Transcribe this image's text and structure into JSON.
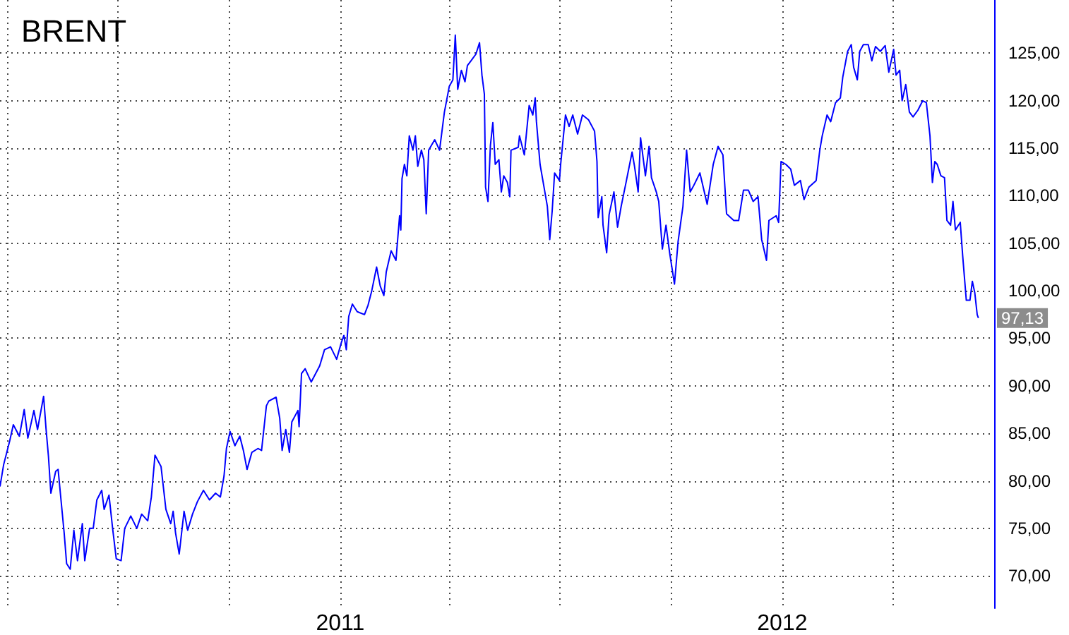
{
  "chart_data": {
    "type": "line",
    "title": "BRENT",
    "x": [
      "2010-03-26",
      "2010-03-29",
      "2010-04-03",
      "2010-04-06",
      "2010-04-11",
      "2010-04-15",
      "2010-04-18",
      "2010-04-23",
      "2010-04-26",
      "2010-05-01",
      "2010-05-03",
      "2010-05-05",
      "2010-05-07",
      "2010-05-11",
      "2010-05-13",
      "2010-05-15",
      "2010-05-18",
      "2010-05-20",
      "2010-05-23",
      "2010-05-26",
      "2010-05-29",
      "2010-06-02",
      "2010-06-04",
      "2010-06-08",
      "2010-06-11",
      "2010-06-14",
      "2010-06-18",
      "2010-06-20",
      "2010-06-24",
      "2010-06-27",
      "2010-06-30",
      "2010-07-04",
      "2010-07-07",
      "2010-07-12",
      "2010-07-17",
      "2010-07-21",
      "2010-07-26",
      "2010-07-29",
      "2010-08-01",
      "2010-08-06",
      "2010-08-10",
      "2010-08-14",
      "2010-08-16",
      "2010-08-18",
      "2010-08-21",
      "2010-08-25",
      "2010-08-28",
      "2010-09-01",
      "2010-09-05",
      "2010-09-10",
      "2010-09-15",
      "2010-09-20",
      "2010-09-24",
      "2010-09-27",
      "2010-09-29",
      "2010-10-02",
      "2010-10-06",
      "2010-10-10",
      "2010-10-13",
      "2010-10-16",
      "2010-10-20",
      "2010-10-25",
      "2010-10-28",
      "2010-11-01",
      "2010-11-03",
      "2010-11-09",
      "2010-11-12",
      "2010-11-14",
      "2010-11-17",
      "2010-11-20",
      "2010-11-22",
      "2010-11-27",
      "2010-11-28",
      "2010-11-30",
      "2010-12-03",
      "2010-12-08",
      "2010-12-15",
      "2010-12-19",
      "2010-12-24",
      "2010-12-29",
      "2011-01-02",
      "2011-01-04",
      "2011-01-06",
      "2011-01-08",
      "2011-01-11",
      "2011-01-15",
      "2011-01-21",
      "2011-01-24",
      "2011-01-27",
      "2011-01-31",
      "2011-02-03",
      "2011-02-06",
      "2011-02-08",
      "2011-02-12",
      "2011-02-16",
      "2011-02-19",
      "2011-02-20",
      "2011-02-21",
      "2011-02-23",
      "2011-02-25",
      "2011-02-27",
      "2011-03-02",
      "2011-03-04",
      "2011-03-06",
      "2011-03-09",
      "2011-03-11",
      "2011-03-13",
      "2011-03-15",
      "2011-03-20",
      "2011-03-24",
      "2011-03-28",
      "2011-04-01",
      "2011-04-04",
      "2011-04-06",
      "2011-04-08",
      "2011-04-11",
      "2011-04-14",
      "2011-04-16",
      "2011-04-19",
      "2011-04-23",
      "2011-04-26",
      "2011-04-28",
      "2011-04-30",
      "2011-05-01",
      "2011-05-03",
      "2011-05-05",
      "2011-05-07",
      "2011-05-09",
      "2011-05-12",
      "2011-05-14",
      "2011-05-16",
      "2011-05-19",
      "2011-05-21",
      "2011-05-22",
      "2011-05-28",
      "2011-05-29",
      "2011-06-02",
      "2011-06-06",
      "2011-06-09",
      "2011-06-11",
      "2011-06-12",
      "2011-06-15",
      "2011-06-18",
      "2011-06-21",
      "2011-06-23",
      "2011-06-25",
      "2011-06-27",
      "2011-07-01",
      "2011-07-02",
      "2011-07-06",
      "2011-07-09",
      "2011-07-12",
      "2011-07-16",
      "2011-07-20",
      "2011-07-25",
      "2011-07-30",
      "2011-08-01",
      "2011-08-02",
      "2011-08-05",
      "2011-08-06",
      "2011-08-09",
      "2011-08-11",
      "2011-08-15",
      "2011-08-18",
      "2011-08-21",
      "2011-08-25",
      "2011-08-30",
      "2011-09-01",
      "2011-09-04",
      "2011-09-06",
      "2011-09-10",
      "2011-09-13",
      "2011-09-15",
      "2011-09-19",
      "2011-09-21",
      "2011-09-24",
      "2011-09-27",
      "2011-09-30",
      "2011-10-04",
      "2011-10-07",
      "2011-10-11",
      "2011-10-14",
      "2011-10-17",
      "2011-10-20",
      "2011-10-25",
      "2011-10-31",
      "2011-11-05",
      "2011-11-09",
      "2011-11-13",
      "2011-11-16",
      "2011-11-22",
      "2011-11-26",
      "2011-11-30",
      "2011-12-04",
      "2011-12-08",
      "2011-12-12",
      "2011-12-15",
      "2011-12-19",
      "2011-12-21",
      "2011-12-27",
      "2011-12-29",
      "2011-12-31",
      "2012-01-04",
      "2012-01-08",
      "2012-01-11",
      "2012-01-16",
      "2012-01-19",
      "2012-01-23",
      "2012-01-29",
      "2012-02-01",
      "2012-02-03",
      "2012-02-07",
      "2012-02-10",
      "2012-02-14",
      "2012-02-18",
      "2012-02-20",
      "2012-02-24",
      "2012-02-27",
      "2012-02-29",
      "2012-03-03",
      "2012-03-05",
      "2012-03-08",
      "2012-03-12",
      "2012-03-15",
      "2012-03-18",
      "2012-03-22",
      "2012-03-26",
      "2012-03-29",
      "2012-04-02",
      "2012-04-04",
      "2012-04-07",
      "2012-04-09",
      "2012-04-12",
      "2012-04-15",
      "2012-04-18",
      "2012-04-22",
      "2012-04-26",
      "2012-04-29",
      "2012-05-02",
      "2012-05-04",
      "2012-05-06",
      "2012-05-08",
      "2012-05-11",
      "2012-05-14",
      "2012-05-16",
      "2012-05-19",
      "2012-05-21",
      "2012-05-23",
      "2012-05-27",
      "2012-05-29",
      "2012-06-01",
      "2012-06-04",
      "2012-06-06",
      "2012-06-08",
      "2012-06-10",
      "2012-06-11"
    ],
    "series": [
      {
        "color": "#0000ff",
        "values": [
          79.4,
          81.7,
          84.2,
          85.9,
          84.7,
          87.5,
          84.5,
          87.4,
          85.4,
          88.9,
          85.5,
          82.6,
          78.7,
          81.0,
          81.2,
          78.5,
          74.5,
          71.3,
          70.7,
          74.8,
          71.6,
          75.5,
          71.6,
          75.0,
          75.0,
          78.0,
          79.0,
          77.0,
          78.5,
          75.0,
          71.8,
          71.6,
          75.0,
          76.3,
          75.0,
          76.5,
          75.8,
          78.3,
          82.7,
          81.5,
          77.0,
          75.5,
          76.8,
          74.5,
          72.3,
          76.8,
          74.8,
          76.5,
          77.8,
          79.0,
          78.0,
          78.7,
          78.3,
          80.5,
          83.4,
          85.2,
          83.7,
          84.7,
          83.2,
          81.2,
          83.0,
          83.4,
          83.2,
          87.9,
          88.4,
          88.8,
          86.6,
          83.2,
          85.4,
          83.0,
          86.2,
          87.4,
          85.7,
          91.3,
          91.8,
          90.4,
          92.1,
          93.8,
          94.1,
          92.8,
          94.6,
          95.3,
          93.8,
          97.3,
          98.6,
          97.8,
          97.5,
          98.5,
          100.0,
          102.5,
          100.5,
          99.5,
          102.0,
          104.2,
          103.2,
          107.9,
          106.4,
          111.8,
          113.3,
          112.1,
          116.3,
          114.8,
          116.3,
          113.1,
          114.8,
          113.8,
          108.1,
          114.8,
          115.9,
          114.8,
          118.8,
          121.5,
          122.2,
          126.9,
          121.2,
          123.2,
          122.0,
          123.7,
          124.2,
          124.9,
          126.1,
          122.7,
          120.7,
          110.9,
          109.4,
          115.3,
          117.7,
          113.3,
          113.8,
          110.4,
          112.1,
          111.4,
          109.9,
          114.8,
          115.1,
          116.3,
          114.3,
          119.5,
          118.5,
          120.3,
          117.8,
          113.3,
          111.1,
          108.9,
          105.4,
          108.4,
          112.4,
          111.6,
          113.3,
          118.5,
          117.3,
          118.5,
          116.5,
          118.5,
          118.0,
          116.8,
          113.6,
          107.7,
          109.9,
          106.9,
          104.0,
          108.0,
          110.4,
          106.7,
          108.9,
          111.4,
          114.6,
          113.1,
          110.4,
          116.1,
          112.1,
          115.2,
          111.9,
          110.4,
          109.4,
          104.4,
          106.9,
          104.0,
          100.7,
          105.2,
          108.9,
          114.8,
          110.4,
          111.1,
          112.4,
          109.1,
          113.3,
          115.2,
          114.3,
          108.1,
          107.4,
          107.4,
          110.6,
          110.6,
          109.4,
          109.9,
          105.4,
          103.2,
          107.4,
          107.9,
          107.2,
          113.6,
          113.3,
          112.8,
          111.1,
          111.6,
          109.6,
          110.9,
          111.6,
          114.8,
          116.3,
          118.5,
          117.8,
          119.8,
          120.3,
          122.5,
          125.2,
          125.9,
          123.5,
          122.2,
          125.2,
          125.9,
          125.9,
          124.2,
          125.7,
          125.2,
          125.8,
          123.0,
          125.4,
          122.7,
          123.2,
          120.0,
          121.7,
          118.8,
          118.3,
          119.0,
          120.0,
          119.8,
          116.3,
          111.4,
          113.6,
          113.3,
          112.1,
          111.9,
          107.4,
          106.9,
          109.4,
          106.4,
          107.2,
          103.7,
          99.0,
          99.0,
          101.0,
          99.8,
          97.5,
          97.13
        ]
      }
    ],
    "xlim": [
      "2010-03-26",
      "2012-06-24"
    ],
    "xticks": [
      {
        "value": "2010-04",
        "label": null
      },
      {
        "value": "2010-07",
        "label": null
      },
      {
        "value": "2010-10",
        "label": null
      },
      "2011",
      {
        "value": "2011-04",
        "label": null
      },
      {
        "value": "2011-07",
        "label": null
      },
      {
        "value": "2011-10",
        "label": null
      },
      "2012",
      {
        "value": "2012-04",
        "label": null
      }
    ],
    "ylim": [
      66.6,
      130.6
    ],
    "yticks": [
      {
        "value": 70,
        "label": "70,00"
      },
      {
        "value": 75,
        "label": "75,00"
      },
      {
        "value": 80,
        "label": "80,00"
      },
      {
        "value": 85,
        "label": "85,00"
      },
      {
        "value": 90,
        "label": "90,00"
      },
      {
        "value": 95,
        "label": "95,00"
      },
      {
        "value": 100,
        "label": "100,00"
      },
      {
        "value": 105,
        "label": "105,00"
      },
      {
        "value": 110,
        "label": "110,00"
      },
      {
        "value": 115,
        "label": "115,00"
      },
      {
        "value": 120,
        "label": "120,00"
      },
      {
        "value": 125,
        "label": "125,00"
      }
    ],
    "annotations": [
      {
        "text": "97,13",
        "x": "2012-06-11",
        "y": 97.13
      }
    ],
    "grid": true,
    "marker": "none",
    "line_style": "solid"
  }
}
